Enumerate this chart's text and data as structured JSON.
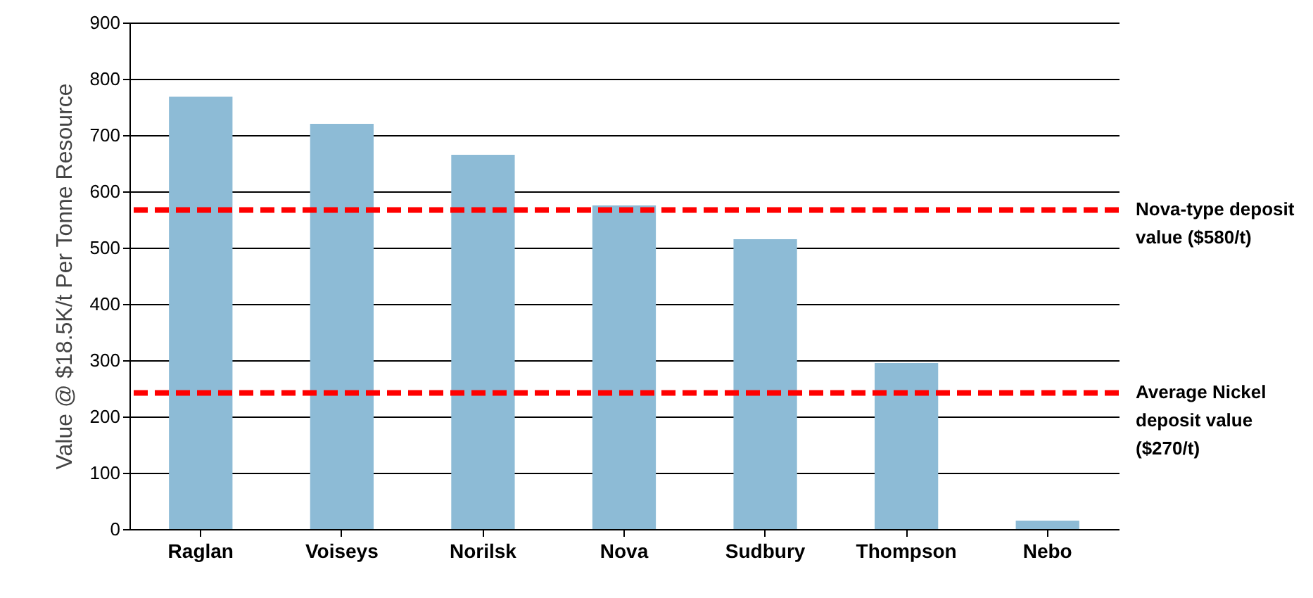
{
  "chart_data": {
    "type": "bar",
    "ylabel": "Value @ $18.5K/t Per Tonne Resource",
    "categories": [
      "Raglan",
      "Voiseys",
      "Norilsk",
      "Nova",
      "Sudbury",
      "Thompson",
      "Nebo"
    ],
    "values": [
      768,
      720,
      665,
      575,
      515,
      295,
      15
    ],
    "color": "#8dbbd6",
    "ylim": [
      0,
      900
    ],
    "yticks": [
      0,
      100,
      200,
      300,
      400,
      500,
      600,
      700,
      800,
      900
    ],
    "grid": "y",
    "ref_lines": [
      {
        "axis": "y",
        "value": 567,
        "label": "Nova-type deposit value ($580/t)",
        "color": "#ff0000",
        "line_style": "dashed"
      },
      {
        "axis": "y",
        "value": 242,
        "label": "Average Nickel deposit value ($270/t)",
        "color": "#ff0000",
        "line_style": "dashed"
      }
    ]
  }
}
